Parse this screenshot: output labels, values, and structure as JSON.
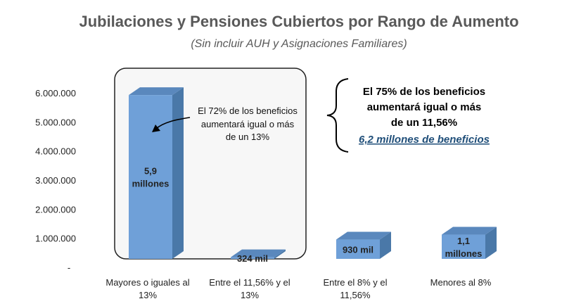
{
  "chart_data": {
    "type": "bar",
    "title": "Jubilaciones y Pensiones Cubiertos por Rango de Aumento",
    "subtitle": "(Sin incluir AUH  y Asignaciones Familiares)",
    "categories": [
      [
        "Mayores o iguales al",
        "13%"
      ],
      [
        "Entre el 11,56% y el",
        "13%"
      ],
      [
        "Entre el 8% y el",
        "11,56%"
      ],
      [
        "Menores al 8%"
      ]
    ],
    "values": [
      5900000,
      324000,
      930000,
      1100000
    ],
    "data_labels": [
      [
        "5,9",
        "millones"
      ],
      [
        "324 mil"
      ],
      [
        "930 mil"
      ],
      [
        "1,1",
        "millones"
      ]
    ],
    "y_ticks": [
      "-",
      "1.000.000",
      "2.000.000",
      "3.000.000",
      "4.000.000",
      "5.000.000",
      "6.000.000"
    ],
    "ylim": [
      0,
      6000000
    ],
    "bar_color": "#6fa0d8",
    "bar_side_color": "#4a78a8",
    "bar_top_color": "#5a88bd",
    "grid": false,
    "legend": "none",
    "annotations": {
      "box_note": [
        "El 72% de los beneficios",
        "aumentará igual o más",
        "de un 13%"
      ],
      "callout": [
        "El 75% de los beneficios",
        "aumentará igual o más",
        "de un 11,56%"
      ],
      "callout_link": "6,2 millones de beneficios"
    }
  }
}
